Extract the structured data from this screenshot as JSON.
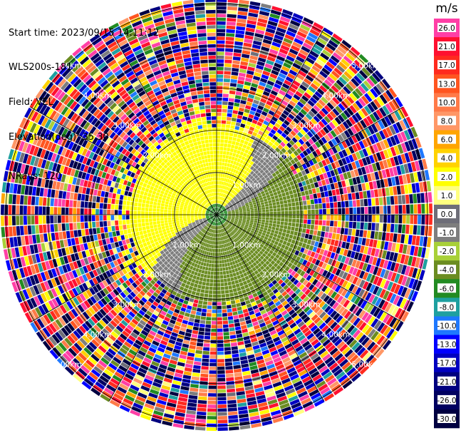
{
  "header": {
    "start_time": "Start time: 2023/09/15 14:11:12",
    "instrument": "WLS200s-181",
    "field": "Field: VEL",
    "elevation": "Elevation(deg): 35.30",
    "nrays": "NRays: 120"
  },
  "chart_data": {
    "type": "heatmap",
    "subtype": "polar-ppi",
    "unit": "m/s",
    "range_rings_km": [
      1.0,
      2.0,
      3.0,
      4.0,
      5.0
    ],
    "ring_labels": [
      {
        "text": "1.00km",
        "ring_km": 1.0,
        "azimuth_deg": 225
      },
      {
        "text": "1.00km",
        "ring_km": 1.0,
        "azimuth_deg": 135
      },
      {
        "text": "1.00km",
        "ring_km": 1.0,
        "azimuth_deg": 45
      },
      {
        "text": "2.00km",
        "ring_km": 2.0,
        "azimuth_deg": 225
      },
      {
        "text": "2.00km",
        "ring_km": 2.0,
        "azimuth_deg": 315
      },
      {
        "text": "2.00km",
        "ring_km": 2.0,
        "azimuth_deg": 135
      },
      {
        "text": "2.00km",
        "ring_km": 2.0,
        "azimuth_deg": 45
      },
      {
        "text": "3.00km",
        "ring_km": 3.0,
        "azimuth_deg": 315
      },
      {
        "text": "3.00km",
        "ring_km": 3.0,
        "azimuth_deg": 45
      },
      {
        "text": "3.00km",
        "ring_km": 3.0,
        "azimuth_deg": 225
      },
      {
        "text": "3.00km",
        "ring_km": 3.0,
        "azimuth_deg": 135
      },
      {
        "text": "4.00km",
        "ring_km": 4.0,
        "azimuth_deg": 315
      },
      {
        "text": "4.00km",
        "ring_km": 4.0,
        "azimuth_deg": 45
      },
      {
        "text": "4.00km",
        "ring_km": 4.0,
        "azimuth_deg": 225
      },
      {
        "text": "4.00km",
        "ring_km": 4.0,
        "azimuth_deg": 135
      },
      {
        "text": "5.00km",
        "ring_km": 5.0,
        "azimuth_deg": 315
      },
      {
        "text": "5.00km",
        "ring_km": 5.0,
        "azimuth_deg": 45
      },
      {
        "text": "5.00km",
        "ring_km": 5.0,
        "azimuth_deg": 225
      },
      {
        "text": "5.00km",
        "ring_km": 5.0,
        "azimuth_deg": 135
      }
    ],
    "max_range_km": 5.1,
    "spokes_deg": [
      0,
      30,
      60,
      90,
      120,
      150,
      180,
      210,
      240,
      270,
      300,
      330
    ],
    "nrays": 120,
    "pattern": {
      "clean_radius_km": 2.0,
      "toward_northwest_value": 2.5,
      "toward_southeast_value": -3.0,
      "center_value": -5.0,
      "noise_beyond_km": 2.3
    },
    "colorbar": {
      "title": "m/s",
      "levels": [
        {
          "label": "26.0",
          "color": "#ff3fa6"
        },
        {
          "label": "21.0",
          "color": "#ff1030"
        },
        {
          "label": "17.0",
          "color": "#ff2a1e"
        },
        {
          "label": "13.0",
          "color": "#ff5520"
        },
        {
          "label": "10.0",
          "color": "#ff7a48"
        },
        {
          "label": "8.0",
          "color": "#ff9766"
        },
        {
          "label": "6.0",
          "color": "#ffa500"
        },
        {
          "label": "4.0",
          "color": "#ffd200"
        },
        {
          "label": "2.0",
          "color": "#ffff00"
        },
        {
          "label": "1.0",
          "color": "#ffff80"
        },
        {
          "label": "0.0",
          "color": "#6e6e78"
        },
        {
          "label": "-1.0",
          "color": "#7e7e7e"
        },
        {
          "label": "-2.0",
          "color": "#a8d038"
        },
        {
          "label": "-4.0",
          "color": "#6b8c21"
        },
        {
          "label": "-6.0",
          "color": "#228b22"
        },
        {
          "label": "-8.0",
          "color": "#1ea0a0"
        },
        {
          "label": "-10.0",
          "color": "#1e78ff"
        },
        {
          "label": "-13.0",
          "color": "#0000ff"
        },
        {
          "label": "-17.0",
          "color": "#0000c0"
        },
        {
          "label": "-21.0",
          "color": "#00007f"
        },
        {
          "label": "-26.0",
          "color": "#000060"
        },
        {
          "label": "-30.0",
          "color": "#000040"
        }
      ]
    }
  }
}
